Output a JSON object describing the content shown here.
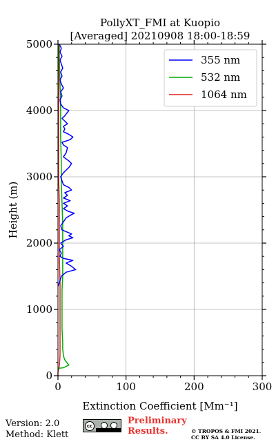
{
  "chart_data": {
    "type": "line",
    "title": "PollyXT_FMI at Kuopio",
    "subtitle": "[Averaged] 20210908 18:00-18:59",
    "xlabel": "Extinction Coefficient [Mm⁻¹]",
    "ylabel": "Height (m)",
    "xlim": [
      0,
      300
    ],
    "ylim": [
      0,
      5000
    ],
    "xticks": [
      "0",
      "100",
      "200",
      "300"
    ],
    "yticks": [
      "0",
      "1000",
      "2000",
      "3000",
      "4000",
      "5000"
    ],
    "grid": true,
    "legend_position": "top-right",
    "series": [
      {
        "name": "355 nm",
        "color": "#0000ff",
        "points": [
          [
            0,
            1350
          ],
          [
            2,
            1400
          ],
          [
            5,
            1500
          ],
          [
            12,
            1560
          ],
          [
            26,
            1600
          ],
          [
            20,
            1650
          ],
          [
            12,
            1700
          ],
          [
            22,
            1740
          ],
          [
            8,
            1770
          ],
          [
            3,
            1800
          ],
          [
            5,
            1850
          ],
          [
            2,
            1900
          ],
          [
            8,
            1950
          ],
          [
            4,
            2000
          ],
          [
            12,
            2050
          ],
          [
            22,
            2080
          ],
          [
            16,
            2110
          ],
          [
            20,
            2140
          ],
          [
            10,
            2180
          ],
          [
            6,
            2200
          ],
          [
            4,
            2260
          ],
          [
            8,
            2320
          ],
          [
            12,
            2380
          ],
          [
            20,
            2430
          ],
          [
            24,
            2450
          ],
          [
            15,
            2480
          ],
          [
            8,
            2520
          ],
          [
            14,
            2560
          ],
          [
            8,
            2600
          ],
          [
            18,
            2640
          ],
          [
            8,
            2680
          ],
          [
            14,
            2720
          ],
          [
            10,
            2760
          ],
          [
            20,
            2800
          ],
          [
            16,
            2840
          ],
          [
            8,
            2880
          ],
          [
            6,
            2940
          ],
          [
            4,
            3000
          ],
          [
            8,
            3060
          ],
          [
            12,
            3100
          ],
          [
            16,
            3140
          ],
          [
            20,
            3200
          ],
          [
            16,
            3240
          ],
          [
            8,
            3300
          ],
          [
            12,
            3360
          ],
          [
            14,
            3440
          ],
          [
            8,
            3480
          ],
          [
            6,
            3520
          ],
          [
            18,
            3560
          ],
          [
            22,
            3600
          ],
          [
            16,
            3640
          ],
          [
            8,
            3680
          ],
          [
            10,
            3720
          ],
          [
            8,
            3760
          ],
          [
            14,
            3800
          ],
          [
            10,
            3840
          ],
          [
            6,
            3880
          ],
          [
            10,
            3920
          ],
          [
            16,
            4000
          ],
          [
            8,
            4040
          ],
          [
            4,
            4100
          ],
          [
            3,
            4160
          ],
          [
            6,
            4220
          ],
          [
            4,
            4280
          ],
          [
            8,
            4340
          ],
          [
            5,
            4400
          ],
          [
            3,
            4460
          ],
          [
            6,
            4520
          ],
          [
            4,
            4580
          ],
          [
            7,
            4640
          ],
          [
            5,
            4700
          ],
          [
            3,
            4760
          ],
          [
            6,
            4820
          ],
          [
            3,
            4880
          ],
          [
            5,
            4940
          ],
          [
            2,
            5000
          ]
        ]
      },
      {
        "name": "532 nm",
        "color": "#00aa00",
        "points": [
          [
            0,
            110
          ],
          [
            8,
            120
          ],
          [
            16,
            160
          ],
          [
            13,
            200
          ],
          [
            10,
            240
          ],
          [
            8,
            300
          ],
          [
            7,
            400
          ],
          [
            7,
            500
          ],
          [
            6,
            700
          ],
          [
            6,
            900
          ],
          [
            6,
            1100
          ],
          [
            6,
            1300
          ],
          [
            7,
            1500
          ],
          [
            7,
            1700
          ],
          [
            7,
            1900
          ],
          [
            7,
            2100
          ],
          [
            7,
            2300
          ],
          [
            6,
            2600
          ],
          [
            5,
            2900
          ],
          [
            5,
            3200
          ],
          [
            4,
            3600
          ],
          [
            4,
            4000
          ],
          [
            3,
            4400
          ],
          [
            2,
            4800
          ],
          [
            2,
            5000
          ]
        ]
      },
      {
        "name": "1064 nm",
        "color": "#dd2222",
        "points": [
          [
            0,
            0
          ],
          [
            0,
            50
          ],
          [
            2,
            150
          ],
          [
            3,
            300
          ],
          [
            3,
            600
          ],
          [
            3,
            1000
          ],
          [
            3,
            1400
          ],
          [
            2,
            1800
          ],
          [
            2,
            2200
          ],
          [
            2,
            2600
          ],
          [
            1,
            3000
          ],
          [
            1,
            3500
          ],
          [
            1,
            4000
          ],
          [
            1,
            4500
          ],
          [
            1,
            5000
          ]
        ]
      }
    ]
  },
  "footer": {
    "version": "Version: 2.0",
    "method": "Method: Klett",
    "preliminary_line1": "Preliminary",
    "preliminary_line2": "Results.",
    "copyright_line1": "© TROPOS & FMI 2021.",
    "copyright_line2": "CC BY SA 4.0 License.",
    "license_badge": "cc-by-sa-icon"
  }
}
